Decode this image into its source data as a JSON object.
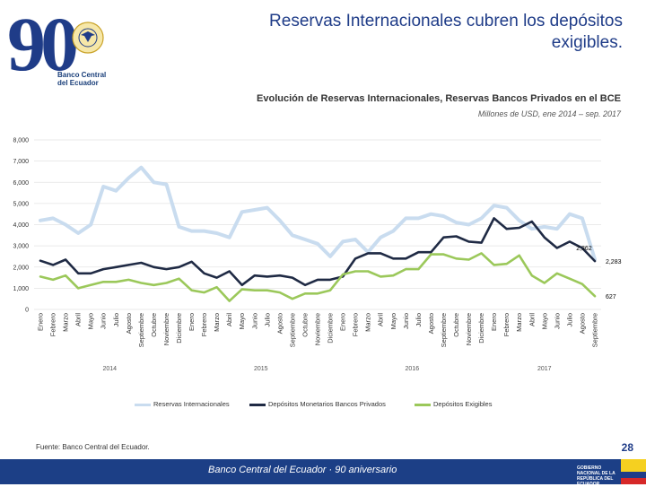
{
  "header": {
    "title": "Reservas Internacionales cubren los depósitos exigibles.",
    "logo_number": "90",
    "logo_line1": "Banco Central",
    "logo_line2": "del Ecuador"
  },
  "chart_data": {
    "type": "line",
    "title": "Evolución de Reservas Internacionales, Reservas Bancos Privados en el BCE",
    "subtitle": "Millones de USD, ene 2014 – sep. 2017",
    "xlabel": "",
    "ylabel": "",
    "ylim": [
      0,
      8000
    ],
    "yticks": [
      "0",
      "1,000",
      "2,000",
      "3,000",
      "4,000",
      "5,000",
      "6,000",
      "7,000",
      "8,000"
    ],
    "grid": true,
    "legend_position": "bottom",
    "categories": [
      "Enero",
      "Febrero",
      "Marzo",
      "Abril",
      "Mayo",
      "Junio",
      "Julio",
      "Agosto",
      "Septiembre",
      "Octubre",
      "Noviembre",
      "Diciembre",
      "Enero",
      "Febrero",
      "Marzo",
      "Abril",
      "Mayo",
      "Junio",
      "Julio",
      "Agosto",
      "Septiembre",
      "Octubre",
      "Noviembre",
      "Diciembre",
      "Enero",
      "Febrero",
      "Marzo",
      "Abril",
      "Mayo",
      "Junio",
      "Julio",
      "Agosto",
      "Septiembre",
      "Octubre",
      "Noviembre",
      "Diciembre",
      "Enero",
      "Febrero",
      "Marzo",
      "Abril",
      "Mayo",
      "Junio",
      "Julio",
      "Agosto",
      "Septiembre"
    ],
    "years": [
      {
        "label": "2014",
        "start": 0,
        "end": 11
      },
      {
        "label": "2015",
        "start": 12,
        "end": 23
      },
      {
        "label": "2016",
        "start": 24,
        "end": 35
      },
      {
        "label": "2017",
        "start": 36,
        "end": 44
      }
    ],
    "series": [
      {
        "name": "Reservas Internacionales",
        "color": "#c9dcef",
        "width": 4,
        "values": [
          4200,
          4300,
          4000,
          3600,
          4000,
          5800,
          5600,
          6200,
          6700,
          6000,
          5900,
          3900,
          3700,
          3700,
          3600,
          3400,
          4600,
          4700,
          4800,
          4200,
          3500,
          3300,
          3100,
          2500,
          3200,
          3300,
          2700,
          3400,
          3700,
          4300,
          4300,
          4500,
          4400,
          4100,
          4000,
          4300,
          4900,
          4800,
          4200,
          3800,
          3900,
          3800,
          4500,
          4300,
          2362
        ],
        "labels": [
          {
            "index": 44,
            "text": "2,362",
            "side": "above"
          }
        ]
      },
      {
        "name": "Depósitos Monetarios Bancos Privados",
        "color": "#1f2a44",
        "width": 2.6,
        "values": [
          2300,
          2100,
          2350,
          1700,
          1700,
          1900,
          2000,
          2100,
          2200,
          2000,
          1900,
          2000,
          2250,
          1700,
          1500,
          1800,
          1150,
          1600,
          1550,
          1600,
          1500,
          1150,
          1400,
          1400,
          1550,
          2400,
          2650,
          2650,
          2400,
          2400,
          2700,
          2700,
          3400,
          3450,
          3200,
          3150,
          4300,
          3800,
          3850,
          4150,
          3400,
          2900,
          3200,
          2900,
          2283
        ],
        "labels": [
          {
            "index": 44,
            "text": "2,283",
            "side": "right"
          }
        ]
      },
      {
        "name": "Depósitos Exigibles",
        "color": "#9bc85a",
        "width": 2.6,
        "values": [
          1550,
          1400,
          1600,
          1000,
          1150,
          1300,
          1300,
          1400,
          1250,
          1150,
          1250,
          1450,
          900,
          800,
          1050,
          400,
          950,
          900,
          900,
          800,
          500,
          750,
          750,
          900,
          1650,
          1800,
          1800,
          1550,
          1600,
          1900,
          1900,
          2600,
          2600,
          2400,
          2350,
          2650,
          2100,
          2150,
          2550,
          1600,
          1250,
          1700,
          1450,
          1200,
          627
        ],
        "labels": [
          {
            "index": 44,
            "text": "627",
            "side": "right"
          }
        ]
      }
    ]
  },
  "footer": {
    "source": "Fuente: Banco Central del Ecuador.",
    "page_number": "28",
    "banner_text": "Banco Central del Ecuador · 90 aniversario",
    "gov_text": "GOBIERNO NACIONAL DE LA REPÚBLICA DEL ECUADOR"
  },
  "colors": {
    "brand_blue": "#1c3f86",
    "title_blue": "#1f3c88",
    "gold": "#c9a227",
    "grid": "#e3e3e3"
  }
}
